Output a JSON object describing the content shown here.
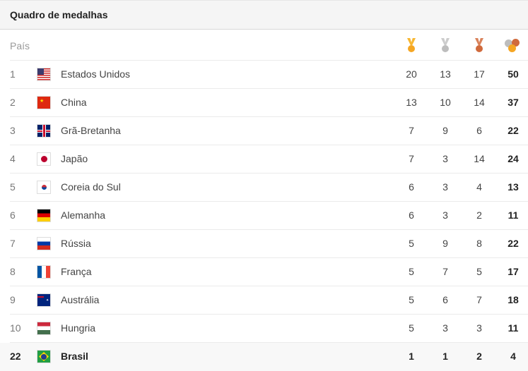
{
  "title": "Quadro de medalhas",
  "header": {
    "country_label": "País",
    "columns": [
      {
        "icon": "gold-medal-icon",
        "color": "#f5a623"
      },
      {
        "icon": "silver-medal-icon",
        "color": "#bdbdbd"
      },
      {
        "icon": "bronze-medal-icon",
        "color": "#d06a3c"
      },
      {
        "icon": "total-medals-icon"
      }
    ]
  },
  "rows": [
    {
      "rank": "1",
      "country": "Estados Unidos",
      "flag": "us",
      "gold": "20",
      "silver": "13",
      "bronze": "17",
      "total": "50"
    },
    {
      "rank": "2",
      "country": "China",
      "flag": "cn",
      "gold": "13",
      "silver": "10",
      "bronze": "14",
      "total": "37"
    },
    {
      "rank": "3",
      "country": "Grã-Bretanha",
      "flag": "gb",
      "gold": "7",
      "silver": "9",
      "bronze": "6",
      "total": "22"
    },
    {
      "rank": "4",
      "country": "Japão",
      "flag": "jp",
      "gold": "7",
      "silver": "3",
      "bronze": "14",
      "total": "24"
    },
    {
      "rank": "5",
      "country": "Coreia do Sul",
      "flag": "kr",
      "gold": "6",
      "silver": "3",
      "bronze": "4",
      "total": "13"
    },
    {
      "rank": "6",
      "country": "Alemanha",
      "flag": "de",
      "gold": "6",
      "silver": "3",
      "bronze": "2",
      "total": "11"
    },
    {
      "rank": "7",
      "country": "Rússia",
      "flag": "ru",
      "gold": "5",
      "silver": "9",
      "bronze": "8",
      "total": "22"
    },
    {
      "rank": "8",
      "country": "França",
      "flag": "fr",
      "gold": "5",
      "silver": "7",
      "bronze": "5",
      "total": "17"
    },
    {
      "rank": "9",
      "country": "Austrália",
      "flag": "au",
      "gold": "5",
      "silver": "6",
      "bronze": "7",
      "total": "18"
    },
    {
      "rank": "10",
      "country": "Hungria",
      "flag": "hu",
      "gold": "5",
      "silver": "3",
      "bronze": "3",
      "total": "11"
    }
  ],
  "highlight": {
    "rank": "22",
    "country": "Brasil",
    "flag": "br",
    "gold": "1",
    "silver": "1",
    "bronze": "2",
    "total": "4"
  }
}
